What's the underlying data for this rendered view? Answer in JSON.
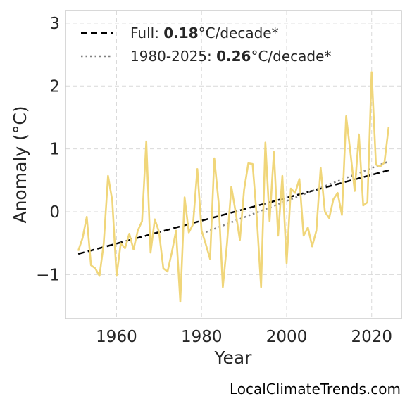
{
  "chart_data": {
    "type": "line",
    "xlabel": "Year",
    "ylabel": "Anomaly (°C)",
    "xlim": [
      1948,
      2027
    ],
    "ylim": [
      -1.7,
      3.2
    ],
    "xticks": [
      1960,
      1980,
      2000,
      2020
    ],
    "yticks": [
      -1,
      0,
      1,
      2,
      3
    ],
    "ytick_labels": [
      "−1",
      "0",
      "1",
      "2",
      "3"
    ],
    "grid": true,
    "legend_position": "top-left",
    "series": [
      {
        "color": "#f0d67a",
        "x": [
          1951,
          1952,
          1953,
          1954,
          1955,
          1956,
          1957,
          1958,
          1959,
          1960,
          1961,
          1962,
          1963,
          1964,
          1965,
          1966,
          1967,
          1968,
          1969,
          1970,
          1971,
          1972,
          1973,
          1974,
          1975,
          1976,
          1977,
          1978,
          1979,
          1980,
          1981,
          1982,
          1983,
          1984,
          1985,
          1986,
          1987,
          1988,
          1989,
          1990,
          1991,
          1992,
          1993,
          1994,
          1995,
          1996,
          1997,
          1998,
          1999,
          2000,
          2001,
          2002,
          2003,
          2004,
          2005,
          2006,
          2007,
          2008,
          2009,
          2010,
          2011,
          2012,
          2013,
          2014,
          2015,
          2016,
          2017,
          2018,
          2019,
          2020,
          2021,
          2022,
          2023,
          2024
        ],
        "values": [
          -0.62,
          -0.42,
          -0.08,
          -0.85,
          -0.9,
          -1.02,
          -0.5,
          0.57,
          0.18,
          -1.02,
          -0.5,
          -0.58,
          -0.35,
          -0.6,
          -0.3,
          -0.15,
          1.12,
          -0.65,
          -0.12,
          -0.32,
          -0.9,
          -0.95,
          -0.65,
          -0.3,
          -1.43,
          0.23,
          -0.33,
          -0.2,
          0.68,
          -0.3,
          -0.52,
          -0.75,
          0.85,
          0.15,
          -1.2,
          -0.5,
          0.4,
          0.0,
          -0.45,
          0.35,
          0.77,
          0.76,
          -0.1,
          -1.2,
          1.1,
          -0.15,
          0.95,
          -0.38,
          0.57,
          -0.82,
          0.37,
          0.3,
          0.52,
          -0.38,
          -0.25,
          -0.55,
          -0.3,
          0.7,
          0.0,
          -0.1,
          0.2,
          0.3,
          -0.05,
          1.52,
          0.95,
          0.33,
          1.23,
          0.1,
          0.15,
          2.22,
          0.75,
          0.72,
          0.78,
          1.35
        ]
      }
    ],
    "trends": [
      {
        "label_prefix": "Full: ",
        "label_value": "0.18",
        "label_suffix": "°C/decade*",
        "color": "#000000",
        "style": "dashed",
        "x": [
          1951,
          2024
        ],
        "values": [
          -0.67,
          0.66
        ]
      },
      {
        "label_prefix": "1980-2025: ",
        "label_value": "0.26",
        "label_suffix": "°C/decade*",
        "color": "#808080",
        "style": "dotted",
        "x": [
          1980,
          2024
        ],
        "values": [
          -0.35,
          0.8
        ]
      }
    ]
  },
  "credit": "LocalClimateTrends.com"
}
